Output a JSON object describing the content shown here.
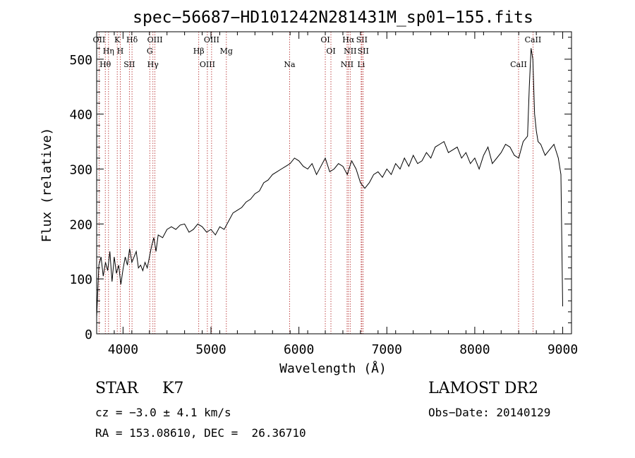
{
  "chart_data": {
    "type": "line",
    "title": "spec−56687−HD101242N281431M_sp01−155.fits",
    "xlabel": "Wavelength (Å)",
    "ylabel": "Flux (relative)",
    "xlim": [
      3700,
      9100
    ],
    "ylim": [
      0,
      550
    ],
    "x_ticks": [
      "4000",
      "5000",
      "6000",
      "7000",
      "8000",
      "9000"
    ],
    "y_ticks": [
      "0",
      "100",
      "200",
      "300",
      "400",
      "500"
    ],
    "x_tick_values": [
      4000,
      5000,
      6000,
      7000,
      8000,
      9000
    ],
    "y_tick_values": [
      0,
      100,
      200,
      300,
      400,
      500
    ],
    "series": [
      {
        "x": [
          3700,
          3725,
          3750,
          3775,
          3800,
          3825,
          3850,
          3875,
          3900,
          3925,
          3950,
          3975,
          4000,
          4025,
          4050,
          4075,
          4100,
          4125,
          4150,
          4175,
          4200,
          4225,
          4250,
          4275,
          4300,
          4325,
          4350,
          4375,
          4400,
          4450,
          4500,
          4550,
          4600,
          4650,
          4700,
          4750,
          4800,
          4850,
          4900,
          4950,
          5000,
          5050,
          5100,
          5150,
          5200,
          5250,
          5300,
          5350,
          5400,
          5450,
          5500,
          5550,
          5600,
          5650,
          5700,
          5750,
          5800,
          5850,
          5900,
          5950,
          6000,
          6050,
          6100,
          6150,
          6200,
          6250,
          6300,
          6350,
          6400,
          6450,
          6500,
          6550,
          6600,
          6650,
          6700,
          6750,
          6800,
          6850,
          6900,
          6950,
          7000,
          7050,
          7100,
          7150,
          7200,
          7250,
          7300,
          7350,
          7400,
          7450,
          7500,
          7550,
          7600,
          7650,
          7700,
          7750,
          7800,
          7850,
          7900,
          7950,
          8000,
          8050,
          8100,
          8150,
          8200,
          8250,
          8300,
          8350,
          8400,
          8450,
          8500,
          8550,
          8600,
          8620,
          8640,
          8660,
          8680,
          8700,
          8720,
          8750,
          8800,
          8850,
          8900,
          8950,
          8980,
          9000
        ],
        "y": [
          30,
          125,
          140,
          105,
          130,
          115,
          150,
          95,
          140,
          110,
          125,
          90,
          118,
          140,
          125,
          155,
          130,
          140,
          150,
          120,
          125,
          115,
          130,
          120,
          140,
          160,
          175,
          150,
          180,
          175,
          190,
          195,
          190,
          198,
          200,
          185,
          190,
          200,
          195,
          185,
          190,
          180,
          195,
          190,
          205,
          220,
          225,
          230,
          240,
          245,
          255,
          260,
          275,
          280,
          290,
          295,
          300,
          305,
          310,
          320,
          315,
          305,
          300,
          310,
          290,
          305,
          320,
          295,
          300,
          310,
          305,
          290,
          315,
          300,
          275,
          265,
          275,
          290,
          295,
          285,
          300,
          290,
          310,
          300,
          320,
          305,
          325,
          310,
          315,
          330,
          320,
          340,
          345,
          350,
          330,
          335,
          340,
          320,
          330,
          310,
          320,
          300,
          325,
          340,
          310,
          320,
          330,
          345,
          340,
          325,
          320,
          350,
          360,
          450,
          520,
          500,
          400,
          370,
          350,
          345,
          325,
          335,
          345,
          320,
          290,
          50
        ]
      }
    ],
    "line_markers": [
      {
        "label": "OII",
        "x": 3727
      },
      {
        "label": "Hη",
        "x": 3835
      },
      {
        "label": "Hθ",
        "x": 3798
      },
      {
        "label": "K",
        "x": 3934
      },
      {
        "label": "H",
        "x": 3968
      },
      {
        "label": "SII",
        "x": 4072
      },
      {
        "label": "Hδ",
        "x": 4102
      },
      {
        "label": "G",
        "x": 4304
      },
      {
        "label": "Hγ",
        "x": 4340
      },
      {
        "label": "OIII",
        "x": 4363
      },
      {
        "label": "Hβ",
        "x": 4861
      },
      {
        "label": "OIII",
        "x": 4959
      },
      {
        "label": "OIII",
        "x": 5007
      },
      {
        "label": "Mg",
        "x": 5175
      },
      {
        "label": "Na",
        "x": 5894
      },
      {
        "label": "OI",
        "x": 6300
      },
      {
        "label": "OI",
        "x": 6364
      },
      {
        "label": "NII",
        "x": 6548
      },
      {
        "label": "Hα",
        "x": 6563
      },
      {
        "label": "NII",
        "x": 6583
      },
      {
        "label": "Li",
        "x": 6708
      },
      {
        "label": "SII",
        "x": 6716
      },
      {
        "label": "SII",
        "x": 6731
      },
      {
        "label": "CaII",
        "x": 8498
      },
      {
        "label": "CaII",
        "x": 8662
      }
    ]
  },
  "info": {
    "object_class": "STAR",
    "subclass": "K7",
    "redshift": "cz = −3.0 ± 4.1 km/s",
    "coordinates": "RA = 153.08610, DEC =  26.36710",
    "survey": "LAMOST DR2",
    "obs_date": "Obs−Date: 20140129"
  }
}
